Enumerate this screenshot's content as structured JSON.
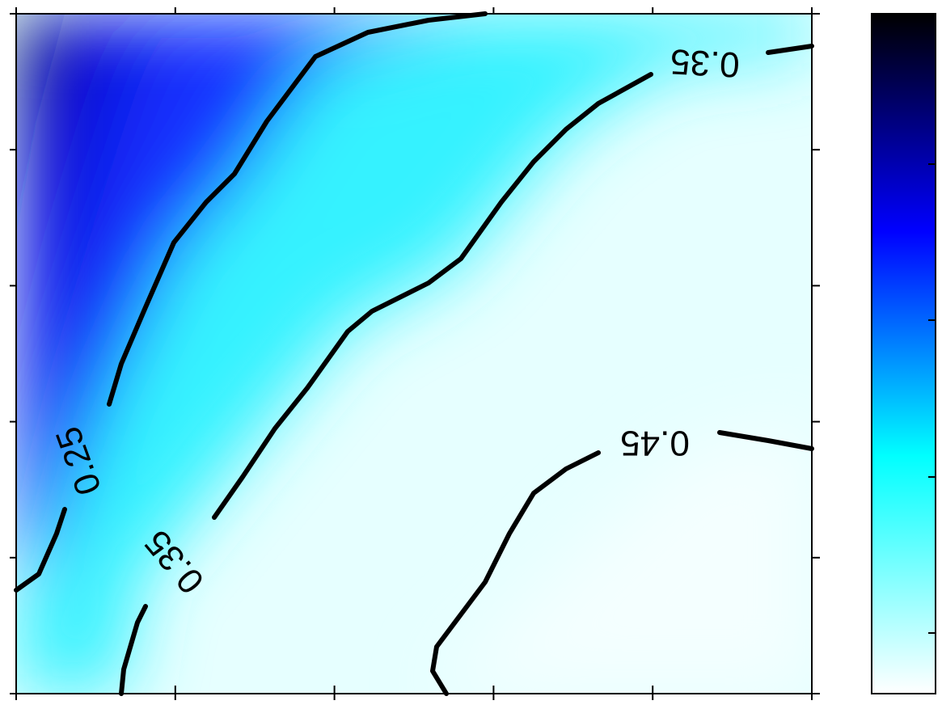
{
  "chart_data": {
    "type": "heatmap",
    "title": "",
    "xlabel": "",
    "ylabel": "",
    "orientation": "rendered upside-down (rotated 180 degrees)",
    "colormap": {
      "name": "black-blue-cyan-white",
      "stops": [
        "#000000",
        "#0000ff",
        "#00ffff",
        "#ffffff"
      ],
      "range": [
        0.15,
        0.55
      ]
    },
    "contours": [
      {
        "level": 0.25,
        "label": "0.25"
      },
      {
        "level": 0.35,
        "label": "0.35"
      },
      {
        "level": 0.45,
        "label": "0.45"
      }
    ],
    "x_ticks": 6,
    "y_ticks": 6,
    "colorbar_ticks": 5,
    "grid": false,
    "colors": {
      "contour": "#000000",
      "frame": "#000000",
      "background": "#ffffff"
    }
  }
}
